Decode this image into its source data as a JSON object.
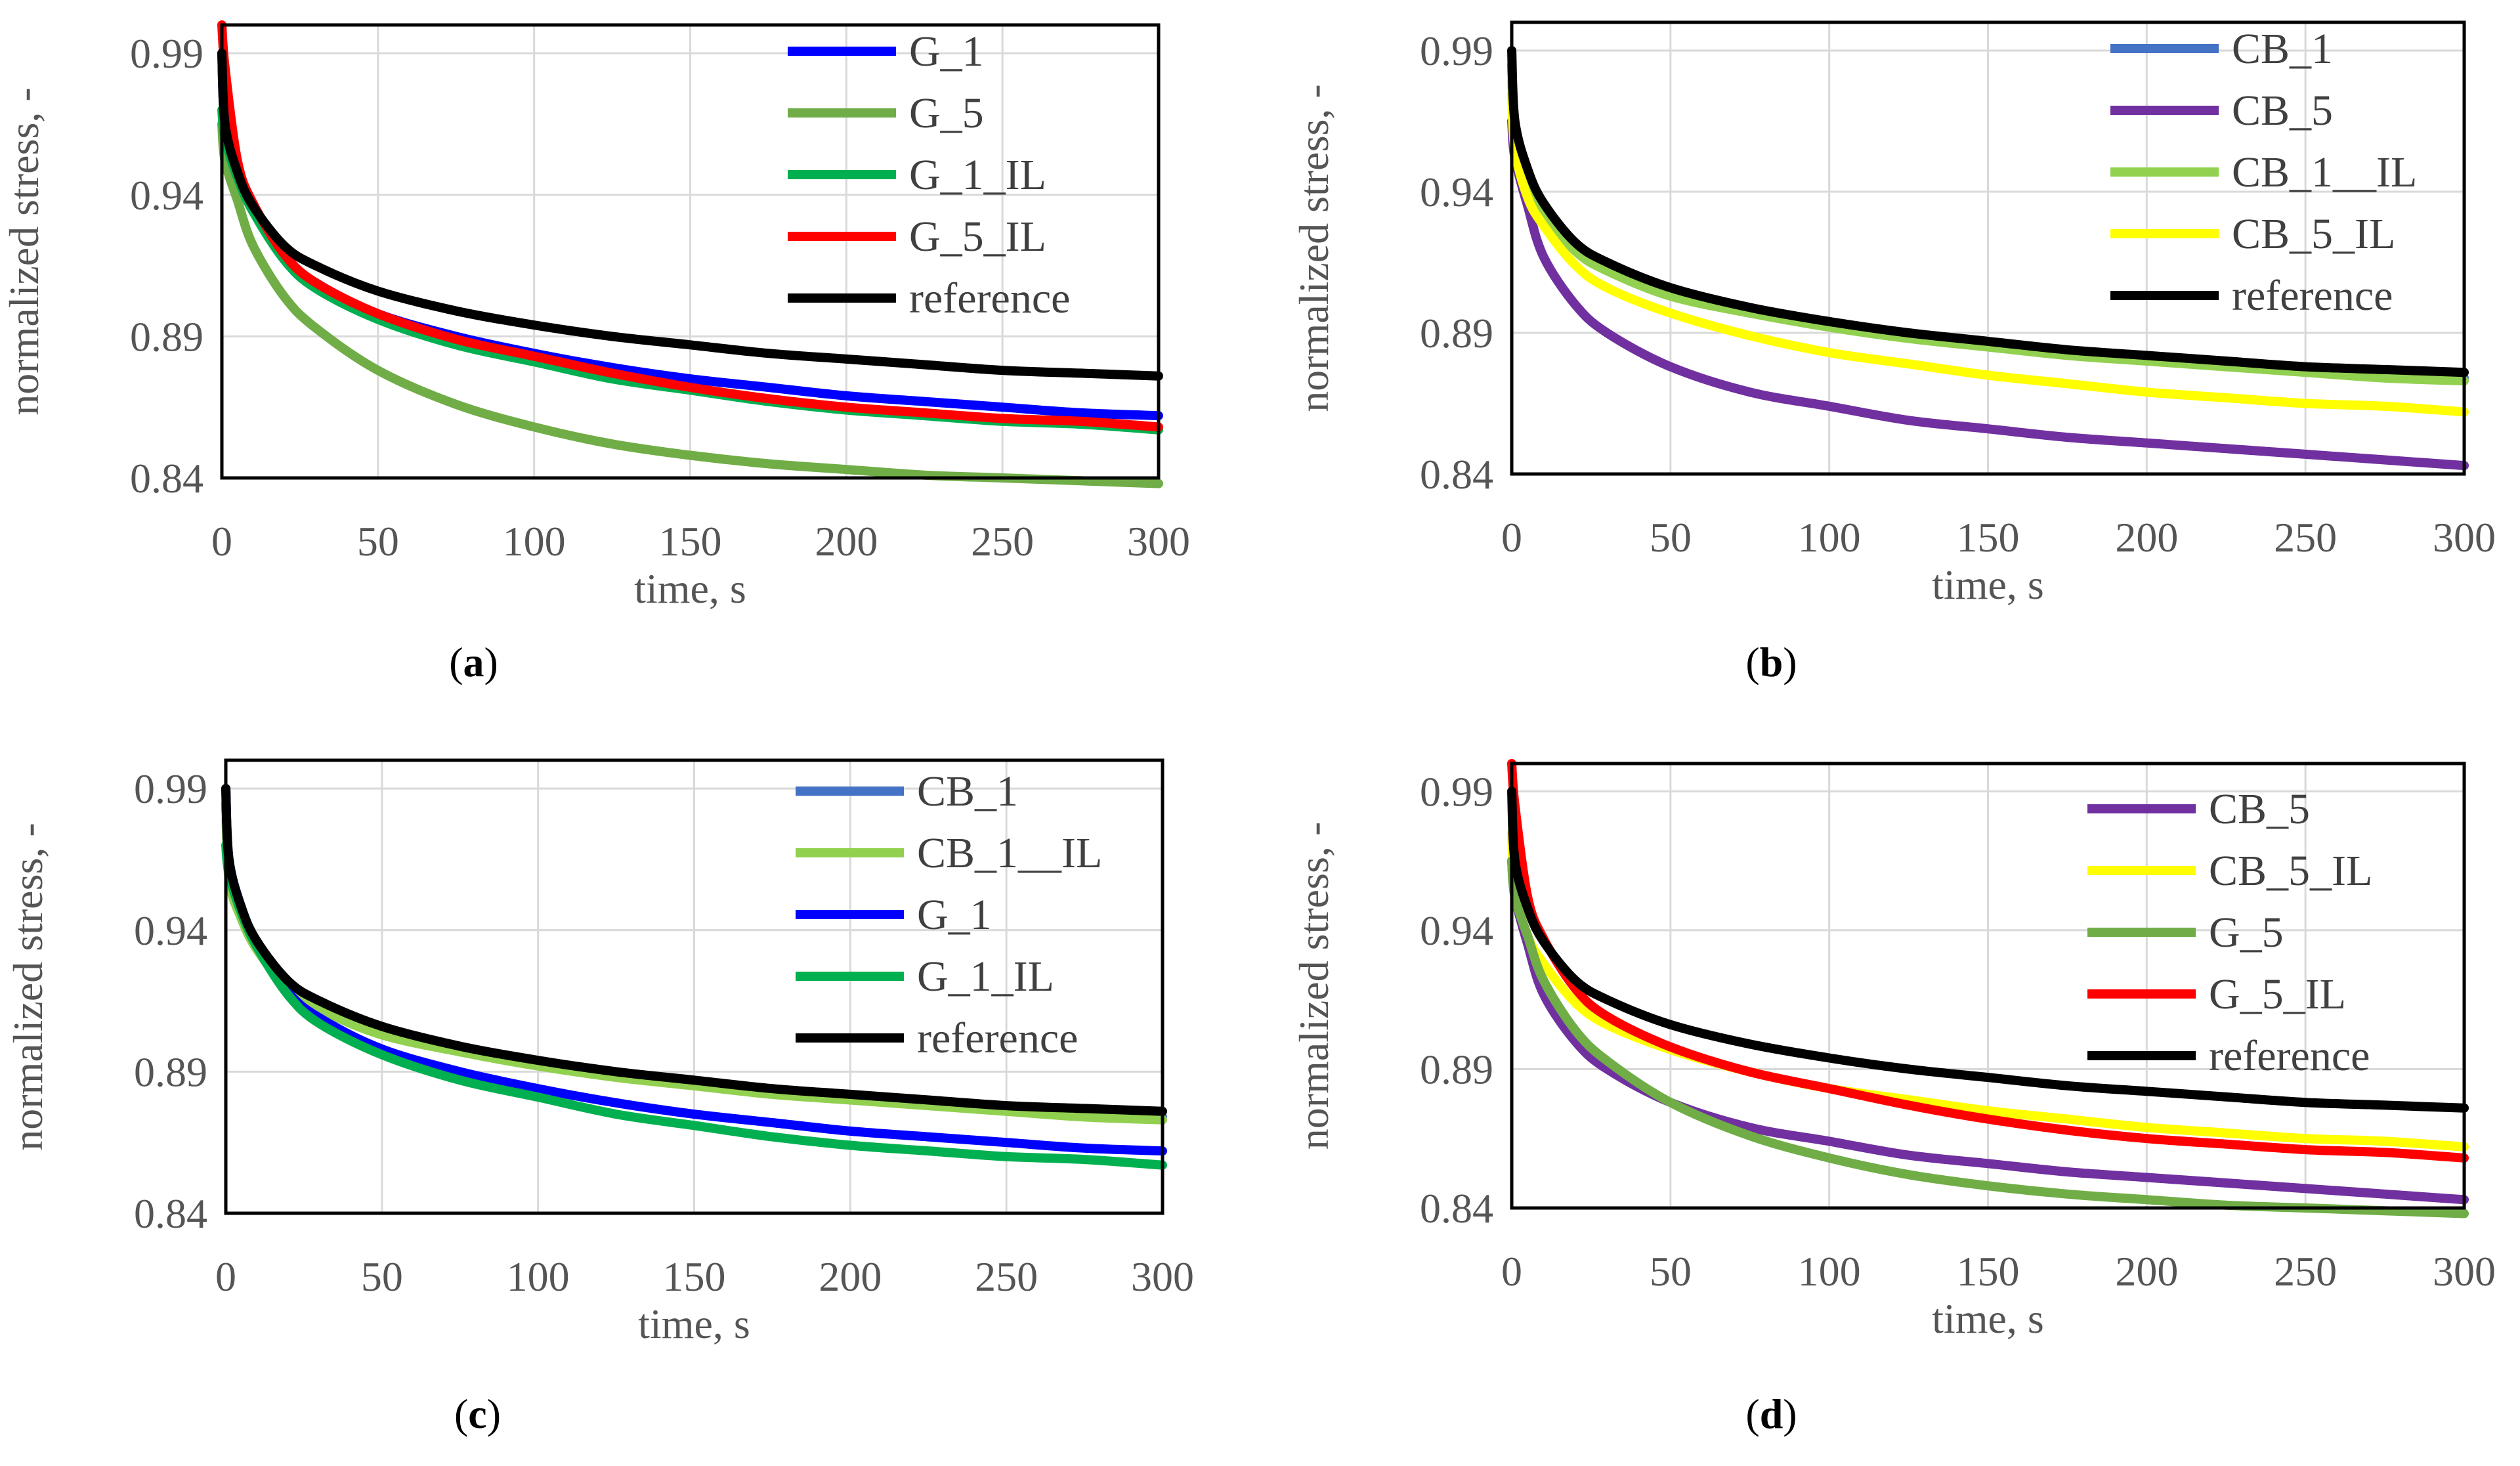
{
  "chart_data": [
    {
      "panel": "a",
      "type": "line",
      "xlabel": "time, s",
      "ylabel": "normalized stress, -",
      "xlim": [
        0,
        300
      ],
      "ylim": [
        0.84,
        1.0
      ],
      "xticks": [
        "0",
        "50",
        "100",
        "150",
        "200",
        "250",
        "300"
      ],
      "yticks": [
        "0.84",
        "0.89",
        "0.94",
        "0.99"
      ],
      "legend_position": "top-right",
      "caption_letter": "a",
      "series": [
        {
          "name": "G_1",
          "color": "#0000ff",
          "x": [
            0,
            1,
            5,
            10,
            20,
            30,
            50,
            75,
            100,
            125,
            150,
            175,
            200,
            225,
            250,
            275,
            300
          ],
          "y": [
            0.99,
            0.965,
            0.948,
            0.935,
            0.918,
            0.909,
            0.898,
            0.89,
            0.884,
            0.879,
            0.875,
            0.872,
            0.869,
            0.867,
            0.865,
            0.863,
            0.862
          ]
        },
        {
          "name": "G_5",
          "color": "#70ad47",
          "x": [
            0,
            1,
            5,
            10,
            20,
            30,
            50,
            75,
            100,
            125,
            150,
            175,
            200,
            225,
            250,
            275,
            300
          ],
          "y": [
            0.965,
            0.952,
            0.938,
            0.922,
            0.904,
            0.893,
            0.878,
            0.866,
            0.858,
            0.852,
            0.848,
            0.845,
            0.843,
            0.841,
            0.84,
            0.839,
            0.838
          ]
        },
        {
          "name": "G_1_IL",
          "color": "#00b050",
          "x": [
            0,
            1,
            5,
            10,
            20,
            30,
            50,
            75,
            100,
            125,
            150,
            175,
            200,
            225,
            250,
            275,
            300
          ],
          "y": [
            0.97,
            0.96,
            0.946,
            0.934,
            0.917,
            0.907,
            0.896,
            0.887,
            0.881,
            0.875,
            0.871,
            0.867,
            0.864,
            0.862,
            0.86,
            0.859,
            0.857
          ]
        },
        {
          "name": "G_5_IL",
          "color": "#ff0000",
          "x": [
            0,
            1,
            5,
            10,
            20,
            30,
            50,
            75,
            100,
            125,
            150,
            175,
            200,
            225,
            250,
            275,
            300
          ],
          "y": [
            1.0,
            0.985,
            0.952,
            0.937,
            0.919,
            0.909,
            0.898,
            0.889,
            0.883,
            0.877,
            0.872,
            0.868,
            0.865,
            0.863,
            0.861,
            0.86,
            0.858
          ]
        },
        {
          "name": "reference",
          "color": "#000000",
          "x": [
            0,
            1,
            5,
            10,
            20,
            30,
            50,
            75,
            100,
            125,
            150,
            175,
            200,
            225,
            250,
            275,
            300
          ],
          "y": [
            0.99,
            0.965,
            0.948,
            0.936,
            0.922,
            0.915,
            0.906,
            0.899,
            0.894,
            0.89,
            0.887,
            0.884,
            0.882,
            0.88,
            0.878,
            0.877,
            0.876
          ]
        }
      ]
    },
    {
      "panel": "b",
      "type": "line",
      "xlabel": "time, s",
      "ylabel": "normalized stress, -",
      "xlim": [
        0,
        300
      ],
      "ylim": [
        0.84,
        1.0
      ],
      "xticks": [
        "0",
        "50",
        "100",
        "150",
        "200",
        "250",
        "300"
      ],
      "yticks": [
        "0.84",
        "0.89",
        "0.94",
        "0.99"
      ],
      "legend_position": "top-right",
      "caption_letter": "b",
      "series": [
        {
          "name": "CB_1",
          "color": "#4472c4",
          "x": [
            0,
            1,
            5,
            10,
            20,
            30,
            50,
            75,
            100,
            125,
            150,
            175,
            200,
            225,
            250,
            275,
            300
          ],
          "y": [
            0.985,
            0.96,
            0.945,
            0.934,
            0.92,
            0.913,
            0.905,
            0.898,
            0.893,
            0.889,
            0.886,
            0.883,
            0.881,
            0.879,
            0.877,
            0.875,
            0.874
          ]
        },
        {
          "name": "CB_5",
          "color": "#7030a0",
          "x": [
            0,
            1,
            5,
            10,
            20,
            30,
            50,
            75,
            100,
            125,
            150,
            175,
            200,
            225,
            250,
            275,
            300
          ],
          "y": [
            0.965,
            0.952,
            0.935,
            0.917,
            0.9,
            0.89,
            0.878,
            0.869,
            0.864,
            0.859,
            0.856,
            0.853,
            0.851,
            0.849,
            0.847,
            0.845,
            0.843
          ]
        },
        {
          "name": "CB_1__IL",
          "color": "#92d050",
          "x": [
            0,
            1,
            5,
            10,
            20,
            30,
            50,
            75,
            100,
            125,
            150,
            175,
            200,
            225,
            250,
            275,
            300
          ],
          "y": [
            0.985,
            0.958,
            0.944,
            0.933,
            0.919,
            0.912,
            0.903,
            0.897,
            0.892,
            0.888,
            0.885,
            0.882,
            0.88,
            0.878,
            0.876,
            0.874,
            0.873
          ]
        },
        {
          "name": "CB_5_IL",
          "color": "#ffff00",
          "x": [
            0,
            1,
            5,
            10,
            20,
            30,
            50,
            75,
            100,
            125,
            150,
            175,
            200,
            225,
            250,
            275,
            300
          ],
          "y": [
            0.975,
            0.955,
            0.938,
            0.928,
            0.914,
            0.906,
            0.897,
            0.889,
            0.883,
            0.879,
            0.875,
            0.872,
            0.869,
            0.867,
            0.865,
            0.864,
            0.862
          ]
        },
        {
          "name": "reference",
          "color": "#000000",
          "x": [
            0,
            1,
            5,
            10,
            20,
            30,
            50,
            75,
            100,
            125,
            150,
            175,
            200,
            225,
            250,
            275,
            300
          ],
          "y": [
            0.99,
            0.965,
            0.948,
            0.936,
            0.922,
            0.915,
            0.906,
            0.899,
            0.894,
            0.89,
            0.887,
            0.884,
            0.882,
            0.88,
            0.878,
            0.877,
            0.876
          ]
        }
      ]
    },
    {
      "panel": "c",
      "type": "line",
      "xlabel": "time, s",
      "ylabel": "normalized stress, -",
      "xlim": [
        0,
        300
      ],
      "ylim": [
        0.84,
        1.0
      ],
      "xticks": [
        "0",
        "50",
        "100",
        "150",
        "200",
        "250",
        "300"
      ],
      "yticks": [
        "0.84",
        "0.89",
        "0.94",
        "0.99"
      ],
      "legend_position": "top-right",
      "caption_letter": "c",
      "series": [
        {
          "name": "CB_1",
          "color": "#4472c4",
          "x": [
            0,
            1,
            5,
            10,
            20,
            30,
            50,
            75,
            100,
            125,
            150,
            175,
            200,
            225,
            250,
            275,
            300
          ],
          "y": [
            0.985,
            0.96,
            0.945,
            0.934,
            0.92,
            0.913,
            0.905,
            0.898,
            0.893,
            0.889,
            0.886,
            0.883,
            0.881,
            0.879,
            0.877,
            0.875,
            0.874
          ]
        },
        {
          "name": "CB_1__IL",
          "color": "#92d050",
          "x": [
            0,
            1,
            5,
            10,
            20,
            30,
            50,
            75,
            100,
            125,
            150,
            175,
            200,
            225,
            250,
            275,
            300
          ],
          "y": [
            0.985,
            0.958,
            0.944,
            0.933,
            0.919,
            0.912,
            0.903,
            0.897,
            0.892,
            0.888,
            0.885,
            0.882,
            0.88,
            0.878,
            0.876,
            0.874,
            0.873
          ]
        },
        {
          "name": "G_1",
          "color": "#0000ff",
          "x": [
            0,
            1,
            5,
            10,
            20,
            30,
            50,
            75,
            100,
            125,
            150,
            175,
            200,
            225,
            250,
            275,
            300
          ],
          "y": [
            0.99,
            0.965,
            0.948,
            0.935,
            0.918,
            0.909,
            0.898,
            0.89,
            0.884,
            0.879,
            0.875,
            0.872,
            0.869,
            0.867,
            0.865,
            0.863,
            0.862
          ]
        },
        {
          "name": "G_1_IL",
          "color": "#00b050",
          "x": [
            0,
            1,
            5,
            10,
            20,
            30,
            50,
            75,
            100,
            125,
            150,
            175,
            200,
            225,
            250,
            275,
            300
          ],
          "y": [
            0.97,
            0.96,
            0.946,
            0.934,
            0.917,
            0.907,
            0.896,
            0.887,
            0.881,
            0.875,
            0.871,
            0.867,
            0.864,
            0.862,
            0.86,
            0.859,
            0.857
          ]
        },
        {
          "name": "reference",
          "color": "#000000",
          "x": [
            0,
            1,
            5,
            10,
            20,
            30,
            50,
            75,
            100,
            125,
            150,
            175,
            200,
            225,
            250,
            275,
            300
          ],
          "y": [
            0.99,
            0.965,
            0.948,
            0.936,
            0.922,
            0.915,
            0.906,
            0.899,
            0.894,
            0.89,
            0.887,
            0.884,
            0.882,
            0.88,
            0.878,
            0.877,
            0.876
          ]
        }
      ]
    },
    {
      "panel": "d",
      "type": "line",
      "xlabel": "time, s",
      "ylabel": "normalized stress, -",
      "xlim": [
        0,
        300
      ],
      "ylim": [
        0.84,
        1.0
      ],
      "xticks": [
        "0",
        "50",
        "100",
        "150",
        "200",
        "250",
        "300"
      ],
      "yticks": [
        "0.84",
        "0.89",
        "0.94",
        "0.99"
      ],
      "legend_position": "top-right",
      "caption_letter": "d",
      "series": [
        {
          "name": "CB_5",
          "color": "#7030a0",
          "x": [
            0,
            1,
            5,
            10,
            20,
            30,
            50,
            75,
            100,
            125,
            150,
            175,
            200,
            225,
            250,
            275,
            300
          ],
          "y": [
            0.965,
            0.952,
            0.935,
            0.917,
            0.9,
            0.89,
            0.878,
            0.869,
            0.864,
            0.859,
            0.856,
            0.853,
            0.851,
            0.849,
            0.847,
            0.845,
            0.843
          ]
        },
        {
          "name": "CB_5_IL",
          "color": "#ffff00",
          "x": [
            0,
            1,
            5,
            10,
            20,
            30,
            50,
            75,
            100,
            125,
            150,
            175,
            200,
            225,
            250,
            275,
            300
          ],
          "y": [
            0.975,
            0.955,
            0.938,
            0.928,
            0.914,
            0.906,
            0.897,
            0.889,
            0.883,
            0.879,
            0.875,
            0.872,
            0.869,
            0.867,
            0.865,
            0.864,
            0.862
          ]
        },
        {
          "name": "G_5",
          "color": "#70ad47",
          "x": [
            0,
            1,
            5,
            10,
            20,
            30,
            50,
            75,
            100,
            125,
            150,
            175,
            200,
            225,
            250,
            275,
            300
          ],
          "y": [
            0.965,
            0.952,
            0.938,
            0.922,
            0.904,
            0.893,
            0.878,
            0.866,
            0.858,
            0.852,
            0.848,
            0.845,
            0.843,
            0.841,
            0.84,
            0.839,
            0.838
          ]
        },
        {
          "name": "G_5_IL",
          "color": "#ff0000",
          "x": [
            0,
            1,
            5,
            10,
            20,
            30,
            50,
            75,
            100,
            125,
            150,
            175,
            200,
            225,
            250,
            275,
            300
          ],
          "y": [
            1.0,
            0.985,
            0.952,
            0.937,
            0.919,
            0.909,
            0.898,
            0.889,
            0.883,
            0.877,
            0.872,
            0.868,
            0.865,
            0.863,
            0.861,
            0.86,
            0.858
          ]
        },
        {
          "name": "reference",
          "color": "#000000",
          "x": [
            0,
            1,
            5,
            10,
            20,
            30,
            50,
            75,
            100,
            125,
            150,
            175,
            200,
            225,
            250,
            275,
            300
          ],
          "y": [
            0.99,
            0.965,
            0.948,
            0.936,
            0.922,
            0.915,
            0.906,
            0.899,
            0.894,
            0.89,
            0.887,
            0.884,
            0.882,
            0.88,
            0.878,
            0.877,
            0.876
          ]
        }
      ]
    }
  ]
}
